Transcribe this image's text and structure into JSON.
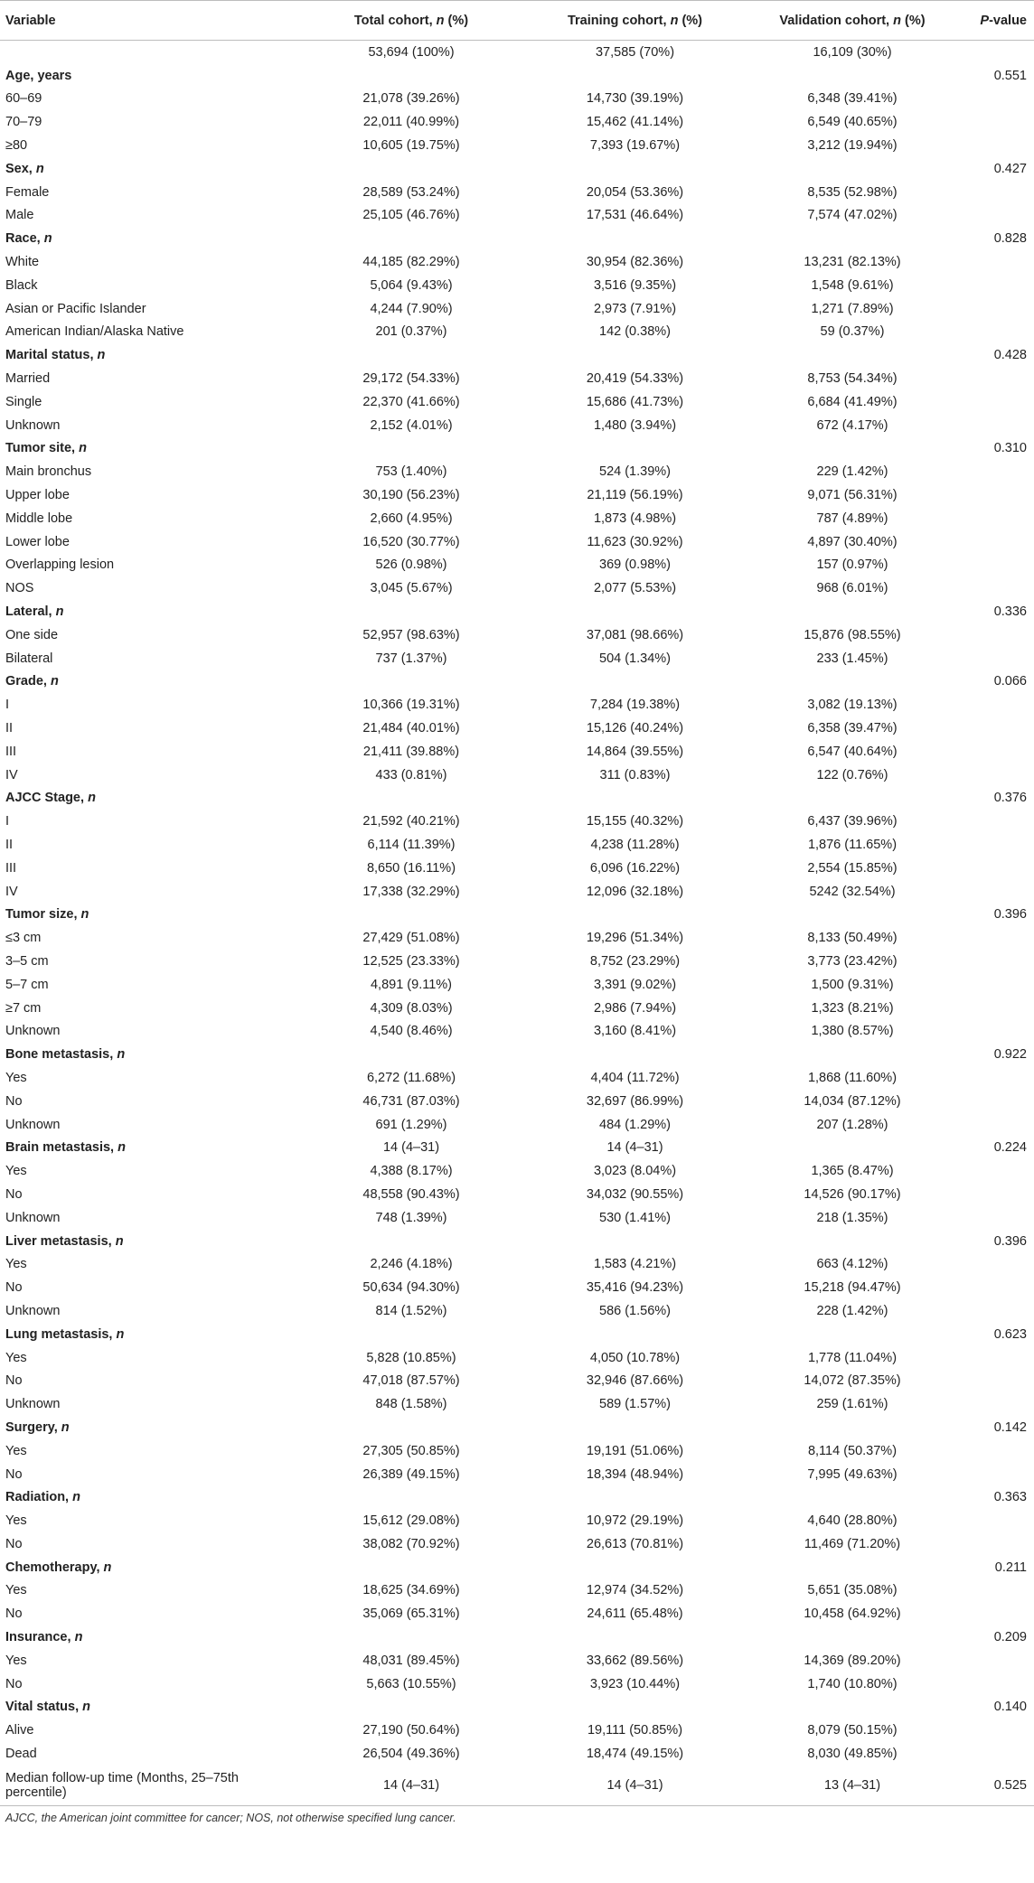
{
  "header": {
    "variable": "Variable",
    "total": "Total cohort, ",
    "training": "Training cohort, ",
    "validation": "Validation cohort, ",
    "n_suffix": " (%)",
    "n_letter": "n",
    "p_letter": "P",
    "p_suffix": "-value"
  },
  "rows": [
    {
      "type": "data",
      "label": "",
      "total": "53,694 (100%)",
      "training": "37,585 (70%)",
      "validation": "16,109 (30%)",
      "p": ""
    },
    {
      "type": "section",
      "label": "Age, years",
      "p": "0.551"
    },
    {
      "type": "data",
      "label": "60–69",
      "total": "21,078 (39.26%)",
      "training": "14,730 (39.19%)",
      "validation": "6,348 (39.41%)",
      "p": ""
    },
    {
      "type": "data",
      "label": "70–79",
      "total": "22,011 (40.99%)",
      "training": "15,462 (41.14%)",
      "validation": "6,549 (40.65%)",
      "p": ""
    },
    {
      "type": "data",
      "label": "≥80",
      "total": "10,605 (19.75%)",
      "training": "7,393 (19.67%)",
      "validation": "3,212 (19.94%)",
      "p": ""
    },
    {
      "type": "section",
      "label": "Sex, ",
      "label_n": "n",
      "p": "0.427"
    },
    {
      "type": "data",
      "label": "Female",
      "total": "28,589 (53.24%)",
      "training": "20,054 (53.36%)",
      "validation": "8,535 (52.98%)",
      "p": ""
    },
    {
      "type": "data",
      "label": "Male",
      "total": "25,105 (46.76%)",
      "training": "17,531 (46.64%)",
      "validation": "7,574 (47.02%)",
      "p": ""
    },
    {
      "type": "section",
      "label": "Race, ",
      "label_n": "n",
      "p": "0.828"
    },
    {
      "type": "data",
      "label": "White",
      "total": "44,185 (82.29%)",
      "training": "30,954 (82.36%)",
      "validation": "13,231 (82.13%)",
      "p": ""
    },
    {
      "type": "data",
      "label": "Black",
      "total": "5,064 (9.43%)",
      "training": "3,516 (9.35%)",
      "validation": "1,548 (9.61%)",
      "p": ""
    },
    {
      "type": "data",
      "label": "Asian or Pacific Islander",
      "total": "4,244 (7.90%)",
      "training": "2,973 (7.91%)",
      "validation": "1,271 (7.89%)",
      "p": ""
    },
    {
      "type": "data",
      "label": "American Indian/Alaska Native",
      "total": "201 (0.37%)",
      "training": "142 (0.38%)",
      "validation": "59 (0.37%)",
      "p": ""
    },
    {
      "type": "section",
      "label": "Marital status, ",
      "label_n": "n",
      "p": "0.428"
    },
    {
      "type": "data",
      "label": "Married",
      "total": "29,172 (54.33%)",
      "training": "20,419 (54.33%)",
      "validation": "8,753 (54.34%)",
      "p": ""
    },
    {
      "type": "data",
      "label": "Single",
      "total": "22,370 (41.66%)",
      "training": "15,686 (41.73%)",
      "validation": "6,684 (41.49%)",
      "p": ""
    },
    {
      "type": "data",
      "label": "Unknown",
      "total": "2,152 (4.01%)",
      "training": "1,480 (3.94%)",
      "validation": "672 (4.17%)",
      "p": ""
    },
    {
      "type": "section",
      "label": "Tumor site, ",
      "label_n": "n",
      "p": "0.310"
    },
    {
      "type": "data",
      "label": "Main bronchus",
      "total": "753 (1.40%)",
      "training": "524 (1.39%)",
      "validation": "229 (1.42%)",
      "p": ""
    },
    {
      "type": "data",
      "label": "Upper lobe",
      "total": "30,190 (56.23%)",
      "training": "21,119 (56.19%)",
      "validation": "9,071 (56.31%)",
      "p": ""
    },
    {
      "type": "data",
      "label": "Middle lobe",
      "total": "2,660 (4.95%)",
      "training": "1,873 (4.98%)",
      "validation": "787 (4.89%)",
      "p": ""
    },
    {
      "type": "data",
      "label": "Lower lobe",
      "total": "16,520 (30.77%)",
      "training": "11,623 (30.92%)",
      "validation": "4,897 (30.40%)",
      "p": ""
    },
    {
      "type": "data",
      "label": "Overlapping lesion",
      "total": "526 (0.98%)",
      "training": "369 (0.98%)",
      "validation": "157 (0.97%)",
      "p": ""
    },
    {
      "type": "data",
      "label": "NOS",
      "total": "3,045 (5.67%)",
      "training": "2,077 (5.53%)",
      "validation": "968 (6.01%)",
      "p": ""
    },
    {
      "type": "section",
      "label": "Lateral, ",
      "label_n": "n",
      "p": "0.336"
    },
    {
      "type": "data",
      "label": "One side",
      "total": "52,957 (98.63%)",
      "training": "37,081 (98.66%)",
      "validation": "15,876 (98.55%)",
      "p": ""
    },
    {
      "type": "data",
      "label": "Bilateral",
      "total": "737 (1.37%)",
      "training": "504 (1.34%)",
      "validation": "233 (1.45%)",
      "p": ""
    },
    {
      "type": "section",
      "label": "Grade, ",
      "label_n": "n",
      "p": "0.066"
    },
    {
      "type": "data",
      "label": "I",
      "total": "10,366 (19.31%)",
      "training": "7,284 (19.38%)",
      "validation": "3,082 (19.13%)",
      "p": ""
    },
    {
      "type": "data",
      "label": "II",
      "total": "21,484 (40.01%)",
      "training": "15,126 (40.24%)",
      "validation": "6,358 (39.47%)",
      "p": ""
    },
    {
      "type": "data",
      "label": "III",
      "total": "21,411 (39.88%)",
      "training": "14,864 (39.55%)",
      "validation": "6,547 (40.64%)",
      "p": ""
    },
    {
      "type": "data",
      "label": "IV",
      "total": "433 (0.81%)",
      "training": "311 (0.83%)",
      "validation": "122 (0.76%)",
      "p": ""
    },
    {
      "type": "section",
      "label": "AJCC Stage, ",
      "label_n": "n",
      "p": "0.376"
    },
    {
      "type": "data",
      "label": "I",
      "total": "21,592 (40.21%)",
      "training": "15,155 (40.32%)",
      "validation": "6,437 (39.96%)",
      "p": ""
    },
    {
      "type": "data",
      "label": "II",
      "total": "6,114 (11.39%)",
      "training": "4,238 (11.28%)",
      "validation": "1,876 (11.65%)",
      "p": ""
    },
    {
      "type": "data",
      "label": "III",
      "total": "8,650 (16.11%)",
      "training": "6,096 (16.22%)",
      "validation": "2,554 (15.85%)",
      "p": ""
    },
    {
      "type": "data",
      "label": "IV",
      "total": "17,338 (32.29%)",
      "training": "12,096 (32.18%)",
      "validation": "5242 (32.54%)",
      "p": ""
    },
    {
      "type": "section",
      "label": "Tumor size, ",
      "label_n": "n",
      "p": "0.396"
    },
    {
      "type": "data",
      "label": "≤3 cm",
      "total": "27,429 (51.08%)",
      "training": "19,296 (51.34%)",
      "validation": "8,133 (50.49%)",
      "p": ""
    },
    {
      "type": "data",
      "label": "3–5 cm",
      "total": "12,525 (23.33%)",
      "training": "8,752 (23.29%)",
      "validation": "3,773 (23.42%)",
      "p": ""
    },
    {
      "type": "data",
      "label": "5–7 cm",
      "total": "4,891 (9.11%)",
      "training": "3,391 (9.02%)",
      "validation": "1,500 (9.31%)",
      "p": ""
    },
    {
      "type": "data",
      "label": "≥7 cm",
      "total": "4,309 (8.03%)",
      "training": "2,986 (7.94%)",
      "validation": "1,323 (8.21%)",
      "p": ""
    },
    {
      "type": "data",
      "label": "Unknown",
      "total": "4,540 (8.46%)",
      "training": "3,160 (8.41%)",
      "validation": "1,380 (8.57%)",
      "p": ""
    },
    {
      "type": "section",
      "label": "Bone metastasis, ",
      "label_n": "n",
      "p": "0.922"
    },
    {
      "type": "data",
      "label": "Yes",
      "total": "6,272 (11.68%)",
      "training": "4,404 (11.72%)",
      "validation": "1,868 (11.60%)",
      "p": ""
    },
    {
      "type": "data",
      "label": "No",
      "total": "46,731 (87.03%)",
      "training": "32,697 (86.99%)",
      "validation": "14,034 (87.12%)",
      "p": ""
    },
    {
      "type": "data",
      "label": "Unknown",
      "total": "691 (1.29%)",
      "training": "484 (1.29%)",
      "validation": "207 (1.28%)",
      "p": ""
    },
    {
      "type": "section",
      "label": "Brain metastasis, ",
      "label_n": "n",
      "total": "14 (4–31)",
      "training": "14 (4–31)",
      "p": "0.224"
    },
    {
      "type": "data",
      "label": "Yes",
      "total": "4,388 (8.17%)",
      "training": "3,023 (8.04%)",
      "validation": "1,365 (8.47%)",
      "p": ""
    },
    {
      "type": "data",
      "label": "No",
      "total": "48,558 (90.43%)",
      "training": "34,032 (90.55%)",
      "validation": "14,526 (90.17%)",
      "p": ""
    },
    {
      "type": "data",
      "label": "Unknown",
      "total": "748 (1.39%)",
      "training": "530 (1.41%)",
      "validation": "218 (1.35%)",
      "p": ""
    },
    {
      "type": "section",
      "label": "Liver metastasis, ",
      "label_n": "n",
      "p": "0.396"
    },
    {
      "type": "data",
      "label": "Yes",
      "total": "2,246 (4.18%)",
      "training": "1,583 (4.21%)",
      "validation": "663 (4.12%)",
      "p": ""
    },
    {
      "type": "data",
      "label": "No",
      "total": "50,634 (94.30%)",
      "training": "35,416 (94.23%)",
      "validation": "15,218 (94.47%)",
      "p": ""
    },
    {
      "type": "data",
      "label": "Unknown",
      "total": "814 (1.52%)",
      "training": "586 (1.56%)",
      "validation": "228 (1.42%)",
      "p": ""
    },
    {
      "type": "section",
      "label": "Lung metastasis, ",
      "label_n": "n",
      "p": "0.623"
    },
    {
      "type": "data",
      "label": "Yes",
      "total": "5,828 (10.85%)",
      "training": "4,050 (10.78%)",
      "validation": "1,778 (11.04%)",
      "p": ""
    },
    {
      "type": "data",
      "label": "No",
      "total": "47,018 (87.57%)",
      "training": "32,946 (87.66%)",
      "validation": "14,072 (87.35%)",
      "p": ""
    },
    {
      "type": "data",
      "label": "Unknown",
      "total": "848 (1.58%)",
      "training": "589 (1.57%)",
      "validation": "259 (1.61%)",
      "p": ""
    },
    {
      "type": "section",
      "label": "Surgery, ",
      "label_n": "n",
      "p": "0.142"
    },
    {
      "type": "data",
      "label": "Yes",
      "total": "27,305 (50.85%)",
      "training": "19,191 (51.06%)",
      "validation": "8,114 (50.37%)",
      "p": ""
    },
    {
      "type": "data",
      "label": "No",
      "total": "26,389 (49.15%)",
      "training": "18,394 (48.94%)",
      "validation": "7,995 (49.63%)",
      "p": ""
    },
    {
      "type": "section",
      "label": "Radiation, ",
      "label_n": "n",
      "p": "0.363"
    },
    {
      "type": "data",
      "label": "Yes",
      "total": "15,612 (29.08%)",
      "training": "10,972 (29.19%)",
      "validation": "4,640 (28.80%)",
      "p": ""
    },
    {
      "type": "data",
      "label": "No",
      "total": "38,082 (70.92%)",
      "training": "26,613 (70.81%)",
      "validation": "11,469 (71.20%)",
      "p": ""
    },
    {
      "type": "section",
      "label": "Chemotherapy, ",
      "label_n": "n",
      "p": "0.211"
    },
    {
      "type": "data",
      "label": "Yes",
      "total": "18,625 (34.69%)",
      "training": "12,974 (34.52%)",
      "validation": "5,651 (35.08%)",
      "p": ""
    },
    {
      "type": "data",
      "label": "No",
      "total": "35,069 (65.31%)",
      "training": "24,611 (65.48%)",
      "validation": "10,458 (64.92%)",
      "p": ""
    },
    {
      "type": "section",
      "label": "Insurance, ",
      "label_n": "n",
      "p": "0.209"
    },
    {
      "type": "data",
      "label": "Yes",
      "total": "48,031 (89.45%)",
      "training": "33,662 (89.56%)",
      "validation": "14,369 (89.20%)",
      "p": ""
    },
    {
      "type": "data",
      "label": "No",
      "total": "5,663 (10.55%)",
      "training": "3,923 (10.44%)",
      "validation": "1,740 (10.80%)",
      "p": ""
    },
    {
      "type": "section",
      "label": "Vital status, ",
      "label_n": "n",
      "p": "0.140"
    },
    {
      "type": "data",
      "label": "Alive",
      "total": "27,190 (50.64%)",
      "training": "19,111 (50.85%)",
      "validation": "8,079 (50.15%)",
      "p": ""
    },
    {
      "type": "data",
      "label": "Dead",
      "total": "26,504 (49.36%)",
      "training": "18,474 (49.15%)",
      "validation": "8,030 (49.85%)",
      "p": ""
    },
    {
      "type": "multi",
      "label": "Median follow-up time (Months, 25–75th percentile)",
      "total": "14 (4–31)",
      "training": "14 (4–31)",
      "validation": "13 (4–31)",
      "p": "0.525"
    }
  ],
  "footnote": "AJCC, the American joint committee for cancer; NOS, not otherwise specified lung cancer."
}
